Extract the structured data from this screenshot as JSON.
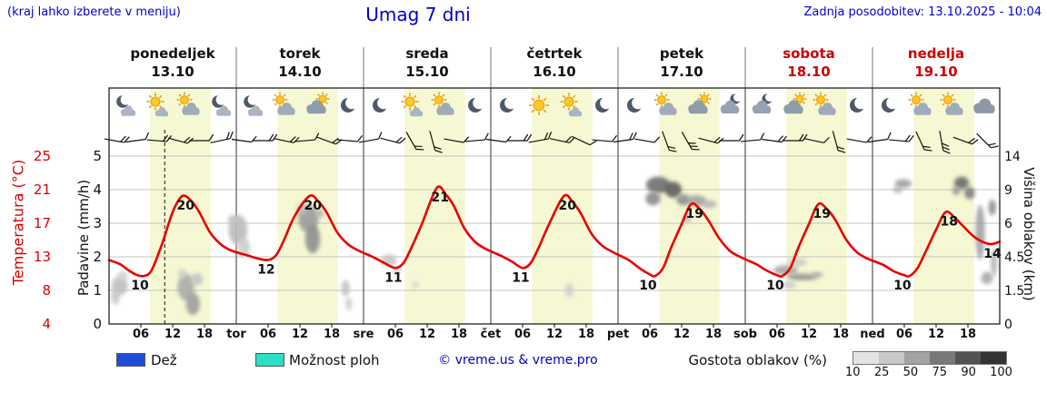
{
  "header": {
    "hint": "(kraj lahko izberete v meniju)",
    "title": "Umag 7 dni",
    "updated": "Zadnja posodobitev: 13.10.2025 - 10:04"
  },
  "axis_titles": {
    "temperature": "Temperatura (°C)",
    "precipitation": "Padavine (mm/h)",
    "cloud_height": "Višina oblakov (km)"
  },
  "days": [
    {
      "name": "ponedeljek",
      "date": "13.10",
      "color": "#111111"
    },
    {
      "name": "torek",
      "date": "14.10",
      "color": "#111111"
    },
    {
      "name": "sreda",
      "date": "15.10",
      "color": "#111111"
    },
    {
      "name": "četrtek",
      "date": "16.10",
      "color": "#111111"
    },
    {
      "name": "petek",
      "date": "17.10",
      "color": "#111111"
    },
    {
      "name": "sobota",
      "date": "18.10",
      "color": "#cc0000"
    },
    {
      "name": "nedelja",
      "date": "19.10",
      "color": "#cc0000"
    }
  ],
  "icons_by_day": [
    [
      "moon-cloud",
      "sun-cloud-small",
      "sun-cloud",
      "moon-cloud"
    ],
    [
      "moon-cloud",
      "sun-cloud",
      "cloud-sun",
      "moon"
    ],
    [
      "moon",
      "sun-cloud-small",
      "sun-cloud",
      "moon"
    ],
    [
      "moon",
      "sun",
      "sun-cloud-small",
      "moon"
    ],
    [
      "moon",
      "sun-cloud",
      "cloud-sun",
      "cloud-moon"
    ],
    [
      "cloud-moon",
      "cloud-sun",
      "sun-cloud",
      "moon"
    ],
    [
      "moon",
      "sun-cloud",
      "sun-cloud",
      "cloud"
    ]
  ],
  "bottom_axis": {
    "hour_labels": [
      "06",
      "12",
      "18"
    ],
    "day_abbrevs": [
      "tor",
      "sre",
      "čet",
      "pet",
      "sob",
      "ned"
    ]
  },
  "legend": {
    "rain_label": "Dež",
    "rain_color": "#1e4ed8",
    "showers_label": "Možnost ploh",
    "showers_color": "#2bdfc7",
    "copyright": "© vreme.us & vreme.pro",
    "cloud_density_label": "Gostota oblakov (%)",
    "density_ticks": [
      "10",
      "25",
      "50",
      "75",
      "90",
      "100"
    ],
    "density_colors": [
      "#e4e4e4",
      "#c8c8c8",
      "#a2a2a2",
      "#787878",
      "#525252",
      "#333333"
    ]
  },
  "colors": {
    "accent_blue": "#0000cc",
    "axis_red": "#d90000",
    "curve_red": "#e80000",
    "daylight_band": "#f5f8d2",
    "grid": "#c4c4c4",
    "frame": "#222222"
  },
  "chart_data": {
    "type": "line",
    "title": "Umag 7 dni",
    "x_unit": "hours from Monday 00:00 to Sunday 24:00 (0..168)",
    "temp_axis": {
      "title": "Temperatura (°C)",
      "ticks_top_to_bottom": [
        25,
        21,
        17,
        13,
        8,
        4
      ]
    },
    "precip_axis": {
      "title": "Padavine (mm/h)",
      "ticks_top_to_bottom": [
        5,
        4,
        3,
        2,
        1,
        0
      ]
    },
    "cloud_height_axis": {
      "title": "Višina oblakov (km)",
      "ticks_top_to_bottom": [
        14,
        9,
        6,
        4.5,
        1.5,
        0
      ]
    },
    "daylight_band_hours": [
      7.75,
      19.17
    ],
    "now_marker_hour": 10.5,
    "temperature_series": {
      "name": "Temperatura",
      "color": "#e80000",
      "points": [
        [
          0,
          12
        ],
        [
          2,
          11.5
        ],
        [
          3.5,
          10.8
        ],
        [
          5,
          10.2
        ],
        [
          6.5,
          10
        ],
        [
          8,
          10.7
        ],
        [
          10,
          14
        ],
        [
          12,
          18
        ],
        [
          13.8,
          20
        ],
        [
          15.5,
          19.4
        ],
        [
          17,
          18
        ],
        [
          19,
          15.5
        ],
        [
          21,
          14
        ],
        [
          23,
          13.2
        ],
        [
          26,
          12.6
        ],
        [
          28,
          12.2
        ],
        [
          30,
          12
        ],
        [
          31.5,
          12.6
        ],
        [
          33,
          14.5
        ],
        [
          35,
          17.5
        ],
        [
          37.8,
          20
        ],
        [
          39.5,
          19.3
        ],
        [
          41,
          18
        ],
        [
          43,
          15.5
        ],
        [
          45,
          14
        ],
        [
          47,
          13.2
        ],
        [
          50,
          12.3
        ],
        [
          52,
          11.6
        ],
        [
          54,
          11
        ],
        [
          55.5,
          11.6
        ],
        [
          57,
          13.5
        ],
        [
          59,
          16.5
        ],
        [
          61.8,
          21
        ],
        [
          63.5,
          20.2
        ],
        [
          65,
          18.8
        ],
        [
          67,
          16
        ],
        [
          69,
          14.3
        ],
        [
          71,
          13.4
        ],
        [
          74,
          12.5
        ],
        [
          76,
          11.8
        ],
        [
          78,
          11
        ],
        [
          79.5,
          11.6
        ],
        [
          81,
          13.5
        ],
        [
          83,
          16.5
        ],
        [
          85.8,
          20
        ],
        [
          87.5,
          19.2
        ],
        [
          89,
          17.8
        ],
        [
          91,
          15.3
        ],
        [
          93,
          13.8
        ],
        [
          95,
          13
        ],
        [
          98,
          12
        ],
        [
          100,
          11
        ],
        [
          102,
          10.2
        ],
        [
          103,
          10
        ],
        [
          104.5,
          11
        ],
        [
          106,
          13.5
        ],
        [
          108,
          16.5
        ],
        [
          109.8,
          19
        ],
        [
          111.5,
          18.3
        ],
        [
          113,
          17
        ],
        [
          115,
          14.8
        ],
        [
          117,
          13.2
        ],
        [
          119,
          12.4
        ],
        [
          122,
          11.5
        ],
        [
          124,
          10.7
        ],
        [
          126,
          10.1
        ],
        [
          127,
          10
        ],
        [
          128.5,
          11
        ],
        [
          130,
          13.5
        ],
        [
          132,
          16.5
        ],
        [
          133.8,
          19
        ],
        [
          135.5,
          18.3
        ],
        [
          137,
          17
        ],
        [
          139,
          14.6
        ],
        [
          141,
          13
        ],
        [
          143,
          12.2
        ],
        [
          146,
          11.4
        ],
        [
          148,
          10.6
        ],
        [
          150,
          10.1
        ],
        [
          151,
          10
        ],
        [
          152.5,
          11
        ],
        [
          154,
          13
        ],
        [
          156,
          15.8
        ],
        [
          157.8,
          18
        ],
        [
          159.5,
          17.3
        ],
        [
          161,
          16.3
        ],
        [
          163,
          15
        ],
        [
          165,
          14.2
        ],
        [
          166.5,
          14
        ],
        [
          168,
          14.3
        ]
      ]
    },
    "temperature_labels": [
      {
        "t": 5.2,
        "T": 10,
        "text": "10"
      },
      {
        "t": 13.8,
        "T": 20,
        "text": "20"
      },
      {
        "t": 29,
        "T": 12,
        "text": "12"
      },
      {
        "t": 37.8,
        "T": 20,
        "text": "20"
      },
      {
        "t": 53,
        "T": 11,
        "text": "11"
      },
      {
        "t": 61.8,
        "T": 21,
        "text": "21"
      },
      {
        "t": 77,
        "T": 11,
        "text": "11"
      },
      {
        "t": 85.8,
        "T": 20,
        "text": "20"
      },
      {
        "t": 101,
        "T": 10,
        "text": "10"
      },
      {
        "t": 109.8,
        "T": 19,
        "text": "19"
      },
      {
        "t": 125,
        "T": 10,
        "text": "10"
      },
      {
        "t": 133.8,
        "T": 19,
        "text": "19"
      },
      {
        "t": 149,
        "T": 10,
        "text": "10"
      },
      {
        "t": 157.8,
        "T": 18,
        "text": "18"
      },
      {
        "t": 166,
        "T": 14,
        "text": "14"
      }
    ],
    "precipitation_series": {
      "name": "Dež",
      "points": []
    },
    "clouds": [
      [
        2,
        1.9,
        3,
        1.4,
        "#bdbdbd"
      ],
      [
        2.6,
        2.8,
        2,
        0.8,
        "#d2d2d2"
      ],
      [
        1.2,
        1.2,
        1.6,
        0.7,
        "#c8c8c8"
      ],
      [
        14.5,
        1.8,
        3.2,
        1.8,
        "#ababab"
      ],
      [
        15.8,
        0.9,
        2.6,
        1.0,
        "#9e9e9e"
      ],
      [
        16.6,
        2.5,
        2.2,
        1.1,
        "#c3c3c3"
      ],
      [
        13.8,
        3.0,
        1.6,
        0.8,
        "#cfcfcf"
      ],
      [
        24.3,
        5.7,
        3.6,
        1.6,
        "#bcbcbc"
      ],
      [
        25.4,
        4.9,
        2.4,
        0.9,
        "#cdcdcd"
      ],
      [
        23.4,
        6.3,
        1.8,
        0.8,
        "#c6c6c6"
      ],
      [
        37.6,
        6.4,
        3.8,
        1.9,
        "#9b9b9b"
      ],
      [
        38.4,
        5.3,
        2.8,
        1.3,
        "#8f8f8f"
      ],
      [
        36.4,
        7.3,
        2.0,
        0.9,
        "#bfbfbf"
      ],
      [
        39.7,
        6.9,
        1.6,
        0.8,
        "#b3b3b3"
      ],
      [
        44.6,
        1.7,
        1.6,
        1.1,
        "#c2c2c2"
      ],
      [
        45.2,
        0.9,
        1.2,
        0.6,
        "#cccccc"
      ],
      [
        52.8,
        4.2,
        3.0,
        0.9,
        "#c8c8c8"
      ],
      [
        54.3,
        3.2,
        1.6,
        0.7,
        "#d2d2d2"
      ],
      [
        57.8,
        2.0,
        1.2,
        0.7,
        "#d6d6d6"
      ],
      [
        86.8,
        1.5,
        1.6,
        0.8,
        "#cfcfcf"
      ],
      [
        103.6,
        9.7,
        4.6,
        2.2,
        "#6e6e6e"
      ],
      [
        102.6,
        8.2,
        2.8,
        1.2,
        "#8a8a8a"
      ],
      [
        106.4,
        9.0,
        3.2,
        1.8,
        "#5e5e5e"
      ],
      [
        108.3,
        8.1,
        2.6,
        1.0,
        "#8f8f8f"
      ],
      [
        110.8,
        8.0,
        3.8,
        1.0,
        "#a2a2a2"
      ],
      [
        113.2,
        7.7,
        2.8,
        0.7,
        "#b5b5b5"
      ],
      [
        108.9,
        6.4,
        1.8,
        0.7,
        "#bcbcbc"
      ],
      [
        127.6,
        3.3,
        4.6,
        0.9,
        "#a6a6a6"
      ],
      [
        130.8,
        2.7,
        5.6,
        0.6,
        "#939393"
      ],
      [
        129.8,
        4.0,
        3.6,
        0.7,
        "#c9c9c9"
      ],
      [
        128.2,
        2.0,
        2.6,
        0.7,
        "#cccccc"
      ],
      [
        133.5,
        2.9,
        2.2,
        0.5,
        "#ababab"
      ],
      [
        149.8,
        9.9,
        3.2,
        1.3,
        "#9d9d9d"
      ],
      [
        148.8,
        9.0,
        1.8,
        0.8,
        "#b4b4b4"
      ],
      [
        160.8,
        10.0,
        2.8,
        1.9,
        "#6a6a6a"
      ],
      [
        162.3,
        8.7,
        2.0,
        1.2,
        "#7d7d7d"
      ],
      [
        159.8,
        8.9,
        1.6,
        0.9,
        "#999999"
      ],
      [
        164.3,
        5.6,
        1.8,
        3.4,
        "#a3a3a3"
      ],
      [
        165.6,
        2.6,
        2.2,
        1.1,
        "#a9a9a9"
      ],
      [
        166.6,
        7.4,
        1.4,
        1.4,
        "#8f8f8f"
      ],
      [
        166.9,
        4.0,
        1.2,
        2.0,
        "#b3b3b3"
      ]
    ],
    "wind_barbs": [
      [
        1,
        10,
        2
      ],
      [
        5,
        -8,
        1
      ],
      [
        9,
        5,
        2
      ],
      [
        13,
        15,
        2
      ],
      [
        17,
        0,
        1
      ],
      [
        21,
        -12,
        2
      ],
      [
        25,
        8,
        1
      ],
      [
        29,
        0,
        2
      ],
      [
        33,
        12,
        2
      ],
      [
        37,
        -5,
        1
      ],
      [
        41,
        20,
        2
      ],
      [
        45,
        5,
        1
      ],
      [
        49,
        -10,
        1
      ],
      [
        53,
        15,
        2
      ],
      [
        57,
        60,
        2
      ],
      [
        61,
        75,
        2
      ],
      [
        65,
        10,
        1
      ],
      [
        69,
        -5,
        1
      ],
      [
        73,
        8,
        1
      ],
      [
        77,
        0,
        2
      ],
      [
        81,
        -10,
        2
      ],
      [
        85,
        12,
        2
      ],
      [
        89,
        25,
        1
      ],
      [
        93,
        5,
        1
      ],
      [
        97,
        -8,
        2
      ],
      [
        101,
        10,
        1
      ],
      [
        105,
        70,
        2
      ],
      [
        109,
        60,
        3
      ],
      [
        113,
        15,
        2
      ],
      [
        117,
        0,
        1
      ],
      [
        121,
        -5,
        1
      ],
      [
        125,
        8,
        2
      ],
      [
        129,
        0,
        2
      ],
      [
        133,
        12,
        1
      ],
      [
        137,
        75,
        2
      ],
      [
        141,
        10,
        1
      ],
      [
        145,
        -8,
        1
      ],
      [
        149,
        5,
        2
      ],
      [
        153,
        65,
        2
      ],
      [
        157,
        80,
        3
      ],
      [
        161,
        20,
        2
      ],
      [
        165,
        45,
        2
      ]
    ]
  }
}
